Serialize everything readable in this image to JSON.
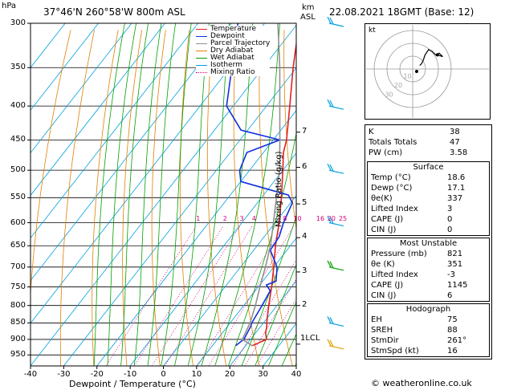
{
  "header": {
    "hpa_unit": "hPa",
    "location": "37°46'N  260°58'W  800m  ASL",
    "km_unit": "km",
    "asl_unit": "ASL",
    "datetime": "22.08.2021  18GMT  (Base: 12)"
  },
  "axis": {
    "xlabel": "Dewpoint / Temperature (°C)",
    "right_label": "Mixing Ratio (g/kg)",
    "credit": "© weatheronline.co.uk",
    "lcl_label": "1LCL"
  },
  "legend": [
    {
      "label": "Temperature",
      "color": "#e02020"
    },
    {
      "label": "Dewpoint",
      "color": "#1030e0"
    },
    {
      "label": "Parcel Trajectory",
      "color": "#909090"
    },
    {
      "label": "Dry Adiabat",
      "color": "#e08000"
    },
    {
      "label": "Wet Adiabat",
      "color": "#00a000"
    },
    {
      "label": "Isotherm",
      "color": "#00a0e0"
    },
    {
      "label": "Mixing Ratio",
      "color": "#d0007a"
    }
  ],
  "colors": {
    "temperature": "#e02020",
    "dewpoint": "#1030e0",
    "parcel": "#909090",
    "dry_adiabat": "#e08000",
    "wet_adiabat": "#00a000",
    "isotherm": "#00a0e0",
    "mixing_ratio": "#d0007a",
    "hodograph": "#000000"
  },
  "chart_data": {
    "type": "line",
    "title": "37°46'N  260°58'W  800m  ASL",
    "xlabel": "Dewpoint / Temperature (°C)",
    "ylabel": "hPa",
    "x_ticks": [
      "-40",
      "-30",
      "-20",
      "-10",
      "0",
      "10",
      "20",
      "30",
      "40"
    ],
    "p_ticks": [
      "300",
      "350",
      "400",
      "450",
      "500",
      "550",
      "600",
      "650",
      "700",
      "750",
      "800",
      "850",
      "900",
      "950"
    ],
    "km_ticks": [
      {
        "label": "7",
        "p": 438
      },
      {
        "label": "6",
        "p": 495
      },
      {
        "label": "5",
        "p": 562
      },
      {
        "label": "4",
        "p": 632
      },
      {
        "label": "3",
        "p": 712
      },
      {
        "label": "2",
        "p": 800
      }
    ],
    "mixing_ratio_labels": [
      "1",
      "2",
      "3",
      "4",
      "8",
      "10",
      "16",
      "20",
      "25"
    ],
    "series": [
      {
        "name": "Temperature",
        "p": [
          920,
          900,
          880,
          860,
          850,
          800,
          750,
          700,
          650,
          600,
          550,
          500,
          470,
          450,
          400,
          350,
          320,
          300
        ],
        "t": [
          22.0,
          24.8,
          23.0,
          21.8,
          21.0,
          17.5,
          14.0,
          10.0,
          5.5,
          1.2,
          -4.0,
          -10.0,
          -14.0,
          -16.0,
          -23.0,
          -31.0,
          -36.0,
          -39.5
        ]
      },
      {
        "name": "Dewpoint",
        "p": [
          920,
          900,
          880,
          860,
          850,
          800,
          760,
          745,
          735,
          700,
          660,
          630,
          600,
          560,
          545,
          520,
          500,
          470,
          450,
          435,
          400,
          300
        ],
        "t": [
          17.0,
          18.0,
          17.5,
          17.0,
          16.5,
          15.5,
          14.5,
          12.0,
          14.0,
          11.0,
          5.0,
          4.5,
          2.5,
          0.5,
          -2.5,
          -20.0,
          -23.0,
          -25.0,
          -18.0,
          -32.0,
          -42.0,
          -58.0
        ]
      },
      {
        "name": "Parcel Trajectory",
        "p": [
          920,
          900,
          850,
          800,
          750,
          700,
          650,
          600,
          550,
          500,
          450,
          400,
          350,
          300
        ],
        "t": [
          22.0,
          17.5,
          16.0,
          13.5,
          10.5,
          7.5,
          4.0,
          -0.5,
          -5.5,
          -11.0,
          -18.0,
          -26.0,
          -35.0,
          -46.0
        ]
      }
    ],
    "wind_barbs": [
      {
        "p": 300,
        "color": "#00a0e0"
      },
      {
        "p": 400,
        "color": "#00a0e0"
      },
      {
        "p": 500,
        "color": "#00a0e0"
      },
      {
        "p": 600,
        "color": "#00a0e0"
      },
      {
        "p": 700,
        "color": "#00a000"
      },
      {
        "p": 850,
        "color": "#00a0e0"
      },
      {
        "p": 920,
        "color": "#e0a000"
      }
    ],
    "hodograph": {
      "label": "kt",
      "ring_labels": [
        "10",
        "20",
        "30"
      ],
      "u": [
        8,
        10,
        12,
        14,
        18,
        22,
        26,
        30,
        34,
        28
      ],
      "v": [
        4,
        6,
        10,
        16,
        22,
        20,
        16,
        18,
        14,
        16
      ]
    }
  },
  "stats": {
    "general": [
      {
        "label": "K",
        "value": "38"
      },
      {
        "label": "Totals Totals",
        "value": "47"
      },
      {
        "label": "PW (cm)",
        "value": "3.58"
      }
    ],
    "surface": {
      "title": "Surface",
      "rows": [
        {
          "label": "Temp (°C)",
          "value": "18.6"
        },
        {
          "label": "Dewp (°C)",
          "value": "17.1"
        },
        {
          "label": "θe(K)",
          "value": "337"
        },
        {
          "label": "Lifted Index",
          "value": "3"
        },
        {
          "label": "CAPE (J)",
          "value": "0"
        },
        {
          "label": "CIN (J)",
          "value": "0"
        }
      ]
    },
    "most_unstable": {
      "title": "Most Unstable",
      "rows": [
        {
          "label": "Pressure (mb)",
          "value": "821"
        },
        {
          "label": "θe (K)",
          "value": "351"
        },
        {
          "label": "Lifted Index",
          "value": "-3"
        },
        {
          "label": "CAPE (J)",
          "value": "1145"
        },
        {
          "label": "CIN (J)",
          "value": "6"
        }
      ]
    },
    "hodograph": {
      "title": "Hodograph",
      "rows": [
        {
          "label": "EH",
          "value": "75"
        },
        {
          "label": "SREH",
          "value": "88"
        },
        {
          "label": "StmDir",
          "value": "261°"
        },
        {
          "label": "StmSpd (kt)",
          "value": "16"
        }
      ]
    }
  }
}
